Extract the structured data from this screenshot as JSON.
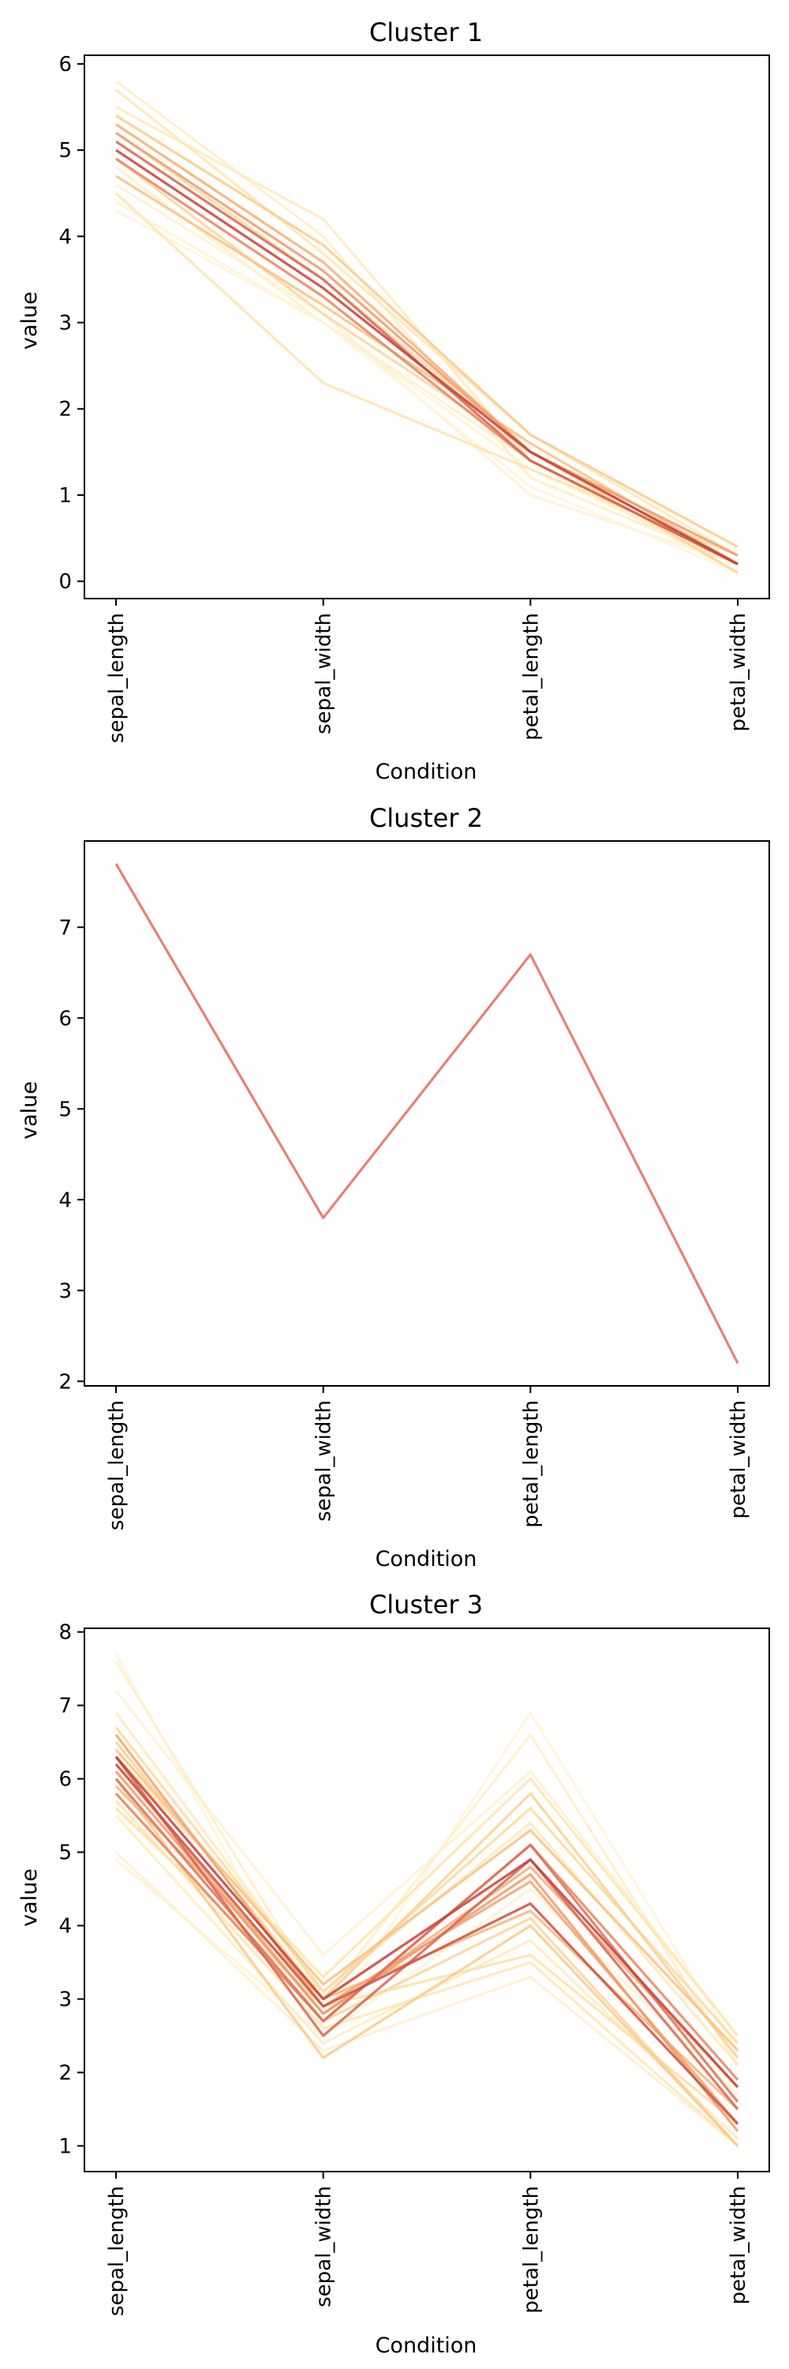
{
  "chart_data": [
    {
      "type": "line",
      "title": "Cluster 1",
      "xlabel": "Condition",
      "ylabel": "value",
      "categories": [
        "sepal_length",
        "sepal_width",
        "petal_length",
        "petal_width"
      ],
      "yticks": [
        0,
        1,
        2,
        3,
        4,
        5,
        6
      ],
      "ylim": [
        -0.2,
        6.1
      ],
      "grid": false,
      "series": [
        {
          "values": [
            4.4,
            3.0,
            1.3,
            0.2
          ],
          "color": "#fff3d6"
        },
        {
          "values": [
            4.6,
            3.1,
            1.0,
            0.2
          ],
          "color": "#fff1d0"
        },
        {
          "values": [
            4.8,
            3.0,
            1.4,
            0.1
          ],
          "color": "#ffefcc"
        },
        {
          "values": [
            5.8,
            4.0,
            1.2,
            0.2
          ],
          "color": "#ffedc6"
        },
        {
          "values": [
            5.5,
            4.2,
            1.4,
            0.2
          ],
          "color": "#ffe9bd"
        },
        {
          "values": [
            4.3,
            3.0,
            1.1,
            0.1
          ],
          "color": "#fff5dc"
        },
        {
          "values": [
            5.7,
            3.8,
            1.7,
            0.3
          ],
          "color": "#ffe6b4"
        },
        {
          "values": [
            4.5,
            2.3,
            1.3,
            0.3
          ],
          "color": "#ffe3ad"
        },
        {
          "values": [
            5.2,
            3.5,
            1.5,
            0.2
          ],
          "color": "#fdd8a0"
        },
        {
          "values": [
            4.9,
            3.1,
            1.5,
            0.1
          ],
          "color": "#fdd49a"
        },
        {
          "values": [
            5.4,
            3.9,
            1.7,
            0.4
          ],
          "color": "#fcc98a"
        },
        {
          "values": [
            4.7,
            3.2,
            1.6,
            0.2
          ],
          "color": "#fcc07e"
        },
        {
          "values": [
            5.3,
            3.7,
            1.5,
            0.2
          ],
          "color": "#f7ad74"
        },
        {
          "values": [
            5.2,
            3.6,
            1.5,
            0.3
          ],
          "color": "#ee9a6c"
        },
        {
          "values": [
            4.9,
            3.3,
            1.4,
            0.2
          ],
          "color": "#e6845f"
        },
        {
          "values": [
            5.1,
            3.5,
            1.4,
            0.2
          ],
          "color": "#d96452"
        },
        {
          "values": [
            5.0,
            3.4,
            1.5,
            0.2
          ],
          "color": "#c73e36"
        }
      ]
    },
    {
      "type": "line",
      "title": "Cluster 2",
      "xlabel": "Condition",
      "ylabel": "value",
      "categories": [
        "sepal_length",
        "sepal_width",
        "petal_length",
        "petal_width"
      ],
      "yticks": [
        2,
        3,
        4,
        5,
        6,
        7
      ],
      "ylim": [
        1.95,
        7.95
      ],
      "grid": false,
      "series": [
        {
          "values": [
            7.7,
            3.8,
            6.7,
            2.2
          ],
          "color": "#e06b5f"
        }
      ]
    },
    {
      "type": "line",
      "title": "Cluster 3",
      "xlabel": "Condition",
      "ylabel": "value",
      "categories": [
        "sepal_length",
        "sepal_width",
        "petal_length",
        "petal_width"
      ],
      "yticks": [
        1,
        2,
        3,
        4,
        5,
        6,
        7,
        8
      ],
      "ylim": [
        0.65,
        8.05
      ],
      "grid": false,
      "series": [
        {
          "values": [
            7.7,
            2.6,
            6.9,
            2.3
          ],
          "color": "#fff5dc"
        },
        {
          "values": [
            4.9,
            2.5,
            4.5,
            1.7
          ],
          "color": "#fff3d6"
        },
        {
          "values": [
            7.2,
            3.6,
            6.1,
            2.5
          ],
          "color": "#fff1d0"
        },
        {
          "values": [
            5.0,
            2.3,
            3.3,
            1.0
          ],
          "color": "#ffefcc"
        },
        {
          "values": [
            7.6,
            3.0,
            6.6,
            2.1
          ],
          "color": "#ffedc6"
        },
        {
          "values": [
            5.5,
            2.4,
            3.8,
            1.1
          ],
          "color": "#ffebc2"
        },
        {
          "values": [
            6.9,
            3.1,
            5.4,
            2.1
          ],
          "color": "#ffe9bd"
        },
        {
          "values": [
            5.7,
            2.6,
            3.5,
            1.0
          ],
          "color": "#ffe6b4"
        },
        {
          "values": [
            6.3,
            3.3,
            6.0,
            2.5
          ],
          "color": "#ffe3ad"
        },
        {
          "values": [
            5.6,
            2.9,
            3.6,
            1.3
          ],
          "color": "#fedfa8"
        },
        {
          "values": [
            6.7,
            3.1,
            5.6,
            2.4
          ],
          "color": "#fdd8a0"
        },
        {
          "values": [
            5.8,
            2.7,
            4.1,
            1.0
          ],
          "color": "#fdd49a"
        },
        {
          "values": [
            6.5,
            3.0,
            5.8,
            2.2
          ],
          "color": "#fccf93"
        },
        {
          "values": [
            6.0,
            2.2,
            4.0,
            1.0
          ],
          "color": "#fcc98a"
        },
        {
          "values": [
            6.4,
            3.2,
            5.3,
            2.3
          ],
          "color": "#fcc07e"
        },
        {
          "values": [
            5.9,
            3.0,
            4.2,
            1.5
          ],
          "color": "#f9b677"
        },
        {
          "values": [
            6.2,
            2.8,
            4.8,
            1.8
          ],
          "color": "#f7ad74"
        },
        {
          "values": [
            6.6,
            2.9,
            4.6,
            1.3
          ],
          "color": "#f2a270"
        },
        {
          "values": [
            6.1,
            2.8,
            4.7,
            1.2
          ],
          "color": "#ee9a6c"
        },
        {
          "values": [
            5.8,
            2.7,
            5.1,
            1.9
          ],
          "color": "#e6845f"
        },
        {
          "values": [
            6.0,
            2.7,
            5.1,
            1.6
          ],
          "color": "#dd7058"
        },
        {
          "values": [
            6.3,
            2.5,
            4.9,
            1.5
          ],
          "color": "#d96452"
        },
        {
          "values": [
            6.2,
            2.9,
            4.3,
            1.3
          ],
          "color": "#cf4f42"
        },
        {
          "values": [
            6.3,
            3.0,
            4.9,
            1.8
          ],
          "color": "#c73e36"
        }
      ]
    }
  ]
}
